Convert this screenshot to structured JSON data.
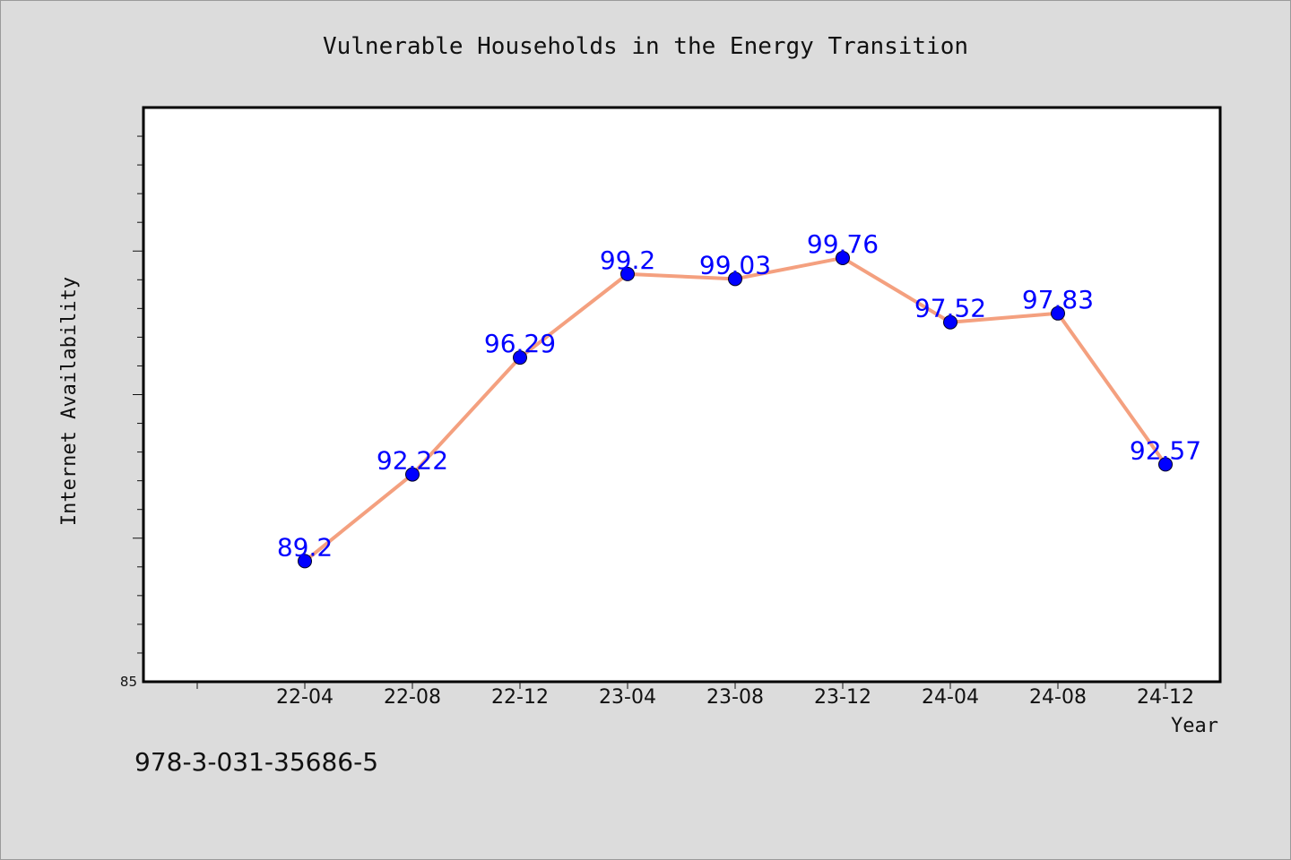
{
  "chart_data": {
    "type": "line",
    "title": "Vulnerable Households in the Energy Transition",
    "xlabel": "Year",
    "ylabel": "Internet Availability",
    "categories": [
      "22-04",
      "22-08",
      "22-12",
      "23-04",
      "23-08",
      "23-12",
      "24-04",
      "24-08",
      "24-12"
    ],
    "series": [
      {
        "values": [
          89.2,
          92.22,
          96.29,
          99.2,
          99.03,
          99.76,
          97.52,
          97.83,
          92.57
        ]
      }
    ],
    "ylim": [
      85,
      105
    ],
    "ytick_labels": [
      "85"
    ],
    "grid": false,
    "colors": {
      "line": "#f4a07f",
      "marker": "#0000ff",
      "label": "#0000ff",
      "background": "#dcdcdc",
      "plot_bg": "#ffffff"
    }
  },
  "footer": {
    "isbn": "978-3-031-35686-5"
  }
}
